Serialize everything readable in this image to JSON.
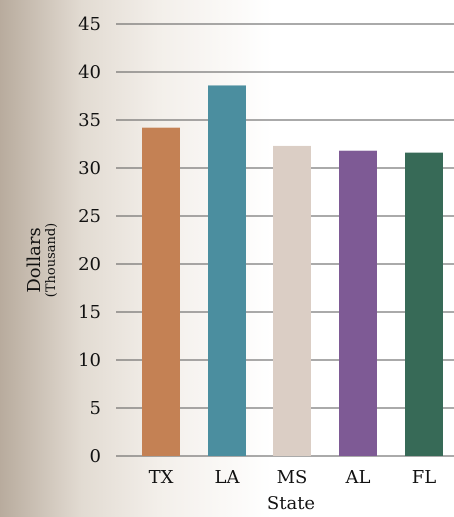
{
  "chart_data": {
    "type": "bar",
    "categories": [
      "TX",
      "LA",
      "MS",
      "AL",
      "FL"
    ],
    "values": [
      34.2,
      38.6,
      32.3,
      31.8,
      31.6
    ],
    "colors": [
      "#c48154",
      "#4b8e9f",
      "#dbcec5",
      "#7e5a95",
      "#376a57"
    ],
    "xlabel": "State",
    "ylabel": "Dollars",
    "ylabel_sub": "(Thousand)",
    "ylim": [
      0,
      45
    ],
    "yticks": [
      0,
      5,
      10,
      15,
      20,
      25,
      30,
      35,
      40,
      45
    ],
    "grid": true
  }
}
